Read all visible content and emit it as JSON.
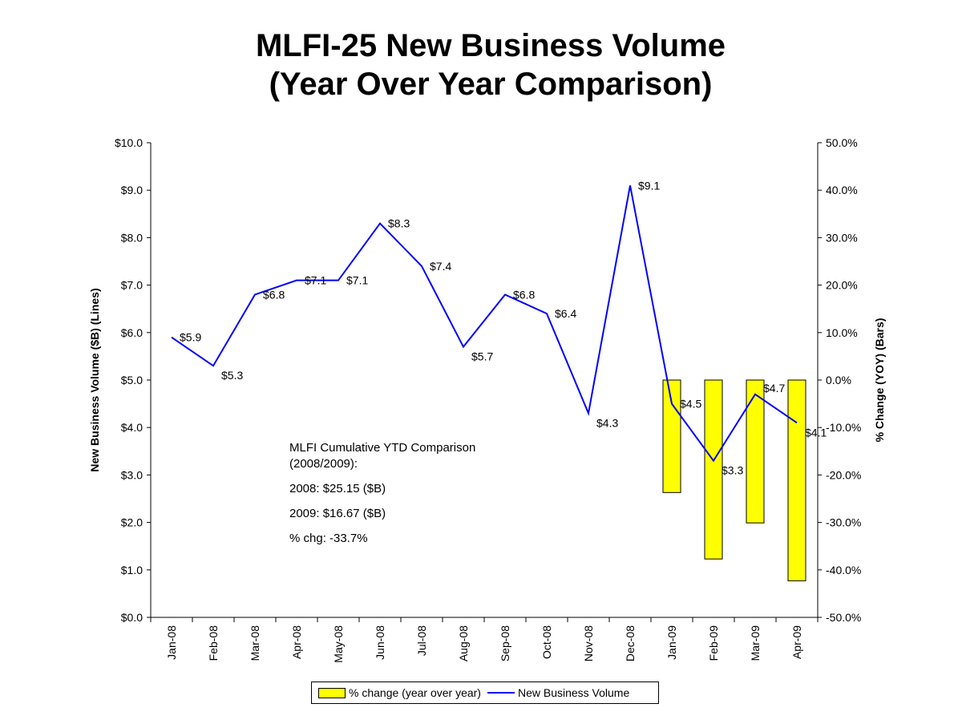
{
  "title_line1": "MLFI-25 New Business Volume",
  "title_line2": "(Year Over Year Comparison)",
  "annotation": {
    "line1": "MLFI Cumulative YTD Comparison",
    "line2": "(2008/2009):",
    "line3": "2008: $25.15 ($B)",
    "line4": "2009: $16.67 ($B)",
    "line5": "% chg:  -33.7%"
  },
  "legend": {
    "bars": "% change (year over year)",
    "line": "New Business Volume"
  },
  "chart_data": {
    "type": "bar+line",
    "categories": [
      "Jan-08",
      "Feb-08",
      "Mar-08",
      "Apr-08",
      "May-08",
      "Jun-08",
      "Jul-08",
      "Aug-08",
      "Sep-08",
      "Oct-08",
      "Nov-08",
      "Dec-08",
      "Jan-09",
      "Feb-09",
      "Mar-09",
      "Apr-09"
    ],
    "ylabel": "New Business Volume ($B) (Lines)",
    "y2label": "% Change (YOY) (Bars)",
    "ylim": [
      0,
      10
    ],
    "y2lim": [
      -50,
      50
    ],
    "yticks": [
      "$0.0",
      "$1.0",
      "$2.0",
      "$3.0",
      "$4.0",
      "$5.0",
      "$6.0",
      "$7.0",
      "$8.0",
      "$9.0",
      "$10.0"
    ],
    "y2ticks": [
      "-50.0%",
      "-40.0%",
      "-30.0%",
      "-20.0%",
      "-10.0%",
      "0.0%",
      "10.0%",
      "20.0%",
      "30.0%",
      "40.0%",
      "50.0%"
    ],
    "legend_position": "bottom",
    "grid": false,
    "series": [
      {
        "name": "New Business Volume",
        "type": "line",
        "axis": "left",
        "color": "#0000ff",
        "values": [
          5.9,
          5.3,
          6.8,
          7.1,
          7.1,
          8.3,
          7.4,
          5.7,
          6.8,
          6.4,
          4.3,
          9.1,
          4.5,
          3.3,
          4.7,
          4.1
        ],
        "labels": [
          "$5.9",
          "$5.3",
          "$6.8",
          "$7.1",
          "$7.1",
          "$8.3",
          "$7.4",
          "$5.7",
          "$6.8",
          "$6.4",
          "$4.3",
          "$9.1",
          "$4.5",
          "$3.3",
          "$4.7",
          "$4.1"
        ]
      },
      {
        "name": "% change (year over year)",
        "type": "bar",
        "axis": "right",
        "color": "#ffff00",
        "values": [
          null,
          null,
          null,
          null,
          null,
          null,
          null,
          null,
          null,
          null,
          null,
          null,
          -23.7,
          -37.7,
          -30.1,
          -42.3
        ]
      }
    ]
  }
}
